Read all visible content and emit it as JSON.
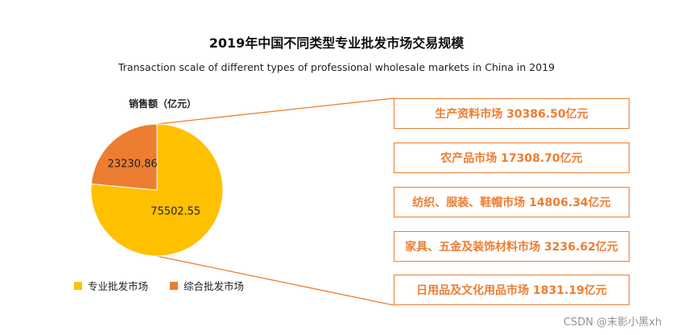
{
  "title": "2019年中国不同类型专业批发市场交易规模",
  "subtitle": "Transaction scale of different types of professional wholesale markets in China in 2019",
  "unit_label": "销售额（亿元）",
  "chart_data": {
    "type": "pie",
    "title": "2019年中国不同类型专业批发市场交易规模",
    "subtitle": "Transaction scale of different types of professional wholesale markets in China in 2019",
    "unit": "销售额（亿元）",
    "slices": [
      {
        "name": "专业批发市场",
        "value": 75502.55,
        "label": "75502.55",
        "color": "#FFC000"
      },
      {
        "name": "综合批发市场",
        "value": 23230.86,
        "label": "23230.86",
        "color": "#ED7D31"
      }
    ],
    "legend_placement": "bottom-left",
    "breakdown": {
      "of": "专业批发市场",
      "items": [
        {
          "text": "生产资料市场 30386.50亿元",
          "value": 30386.5
        },
        {
          "text": "农产品市场 17308.70亿元",
          "value": 17308.7
        },
        {
          "text": "纺织、服装、鞋帽市场 14806.34亿元",
          "value": 14806.34
        },
        {
          "text": "家具、五金及装饰材料市场 3236.62亿元",
          "value": 3236.62
        },
        {
          "text": "日用品及文化用品市场 1831.19亿元",
          "value": 1831.19
        }
      ],
      "color": "#ED7D31"
    }
  },
  "watermark": "CSDN @末影小黑xh"
}
